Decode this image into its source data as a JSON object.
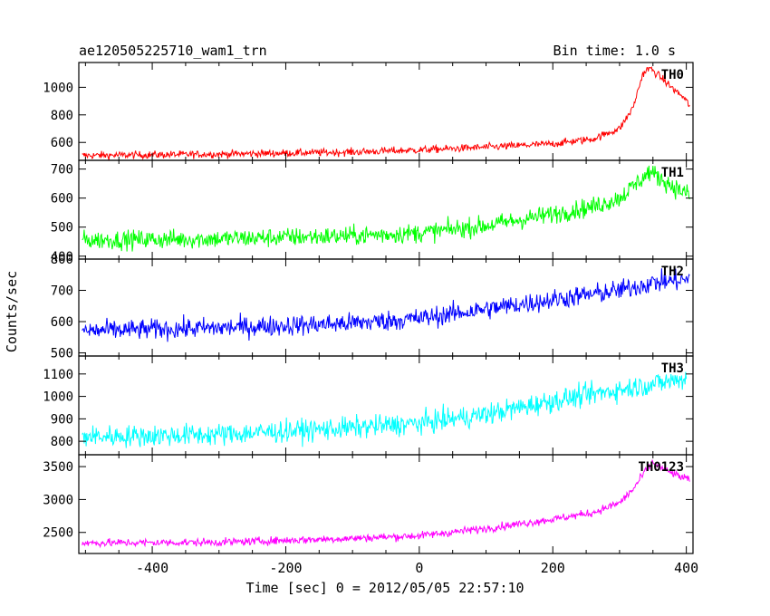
{
  "header": {
    "title": "ae120505225710_wam1_trn",
    "bin_time": "Bin time: 1.0 s"
  },
  "chart_data": {
    "type": "line",
    "x_range": [
      -510,
      410
    ],
    "x_ticks": [
      -400,
      -200,
      0,
      200,
      400
    ],
    "xlabel": "Time [sec] 0 = 2012/05/05 22:57:10",
    "ylabel": "Counts/sec",
    "bin_time_s": 1.0,
    "panels": [
      {
        "name": "TH0",
        "color": "#ff0000",
        "ylim": [
          470,
          1180
        ],
        "yticks": [
          600,
          800,
          1000
        ],
        "noise": 25,
        "profile": [
          [
            -505,
            505
          ],
          [
            -300,
            515
          ],
          [
            -100,
            530
          ],
          [
            0,
            545
          ],
          [
            100,
            565
          ],
          [
            200,
            590
          ],
          [
            260,
            625
          ],
          [
            300,
            700
          ],
          [
            320,
            850
          ],
          [
            335,
            1100
          ],
          [
            345,
            1140
          ],
          [
            360,
            1080
          ],
          [
            380,
            990
          ],
          [
            395,
            930
          ],
          [
            405,
            870
          ]
        ]
      },
      {
        "name": "TH1",
        "color": "#00ff00",
        "ylim": [
          390,
          730
        ],
        "yticks": [
          400,
          500,
          600,
          700
        ],
        "noise": 30,
        "profile": [
          [
            -505,
            455
          ],
          [
            -300,
            460
          ],
          [
            -100,
            470
          ],
          [
            0,
            480
          ],
          [
            100,
            505
          ],
          [
            200,
            545
          ],
          [
            260,
            570
          ],
          [
            300,
            600
          ],
          [
            330,
            660
          ],
          [
            345,
            690
          ],
          [
            360,
            670
          ],
          [
            380,
            640
          ],
          [
            405,
            610
          ]
        ]
      },
      {
        "name": "TH2",
        "color": "#0000ff",
        "ylim": [
          490,
          800
        ],
        "yticks": [
          500,
          600,
          700,
          800
        ],
        "noise": 30,
        "profile": [
          [
            -505,
            570
          ],
          [
            -300,
            580
          ],
          [
            -100,
            595
          ],
          [
            0,
            610
          ],
          [
            100,
            640
          ],
          [
            200,
            670
          ],
          [
            300,
            700
          ],
          [
            350,
            725
          ],
          [
            405,
            735
          ]
        ]
      },
      {
        "name": "TH3",
        "color": "#00ffff",
        "ylim": [
          740,
          1180
        ],
        "yticks": [
          800,
          900,
          1000,
          1100
        ],
        "noise": 45,
        "profile": [
          [
            -505,
            820
          ],
          [
            -300,
            830
          ],
          [
            -100,
            860
          ],
          [
            0,
            880
          ],
          [
            100,
            920
          ],
          [
            200,
            980
          ],
          [
            300,
            1030
          ],
          [
            400,
            1080
          ]
        ]
      },
      {
        "name": "TH0123",
        "color": "#ff00ff",
        "ylim": [
          2180,
          3680
        ],
        "yticks": [
          2500,
          3000,
          3500
        ],
        "noise": 55,
        "profile": [
          [
            -505,
            2340
          ],
          [
            -300,
            2350
          ],
          [
            -100,
            2410
          ],
          [
            0,
            2450
          ],
          [
            100,
            2560
          ],
          [
            200,
            2700
          ],
          [
            260,
            2800
          ],
          [
            300,
            2950
          ],
          [
            320,
            3150
          ],
          [
            340,
            3450
          ],
          [
            350,
            3560
          ],
          [
            370,
            3440
          ],
          [
            390,
            3350
          ],
          [
            405,
            3300
          ]
        ]
      }
    ]
  }
}
